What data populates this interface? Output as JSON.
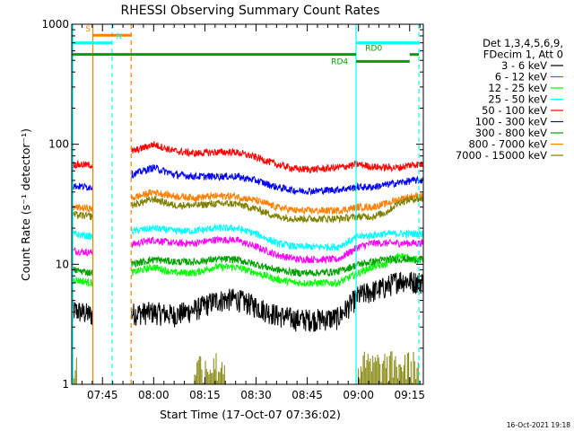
{
  "chart_data": {
    "type": "line",
    "title": "RHESSI Observing Summary Count Rates",
    "xlabel": "Start Time (17-Oct-07 07:36:02)",
    "ylabel": "Count Rate (s⁻¹ detector⁻¹)",
    "yscale": "log",
    "ylim": [
      1,
      1000
    ],
    "xlim_minutes": [
      0,
      103
    ],
    "x_ticks": [
      {
        "label": "07:45",
        "minute": 9
      },
      {
        "label": "08:00",
        "minute": 24
      },
      {
        "label": "08:15",
        "minute": 39
      },
      {
        "label": "08:30",
        "minute": 54
      },
      {
        "label": "08:45",
        "minute": 69
      },
      {
        "label": "09:00",
        "minute": 84
      },
      {
        "label": "09:15",
        "minute": 99
      }
    ],
    "y_ticks": [
      {
        "label": "1",
        "value": 1
      },
      {
        "label": "10",
        "value": 10
      },
      {
        "label": "100",
        "value": 100
      },
      {
        "label": "1000",
        "value": 1000
      }
    ],
    "legend": {
      "position": "right",
      "header": [
        "Det 1,3,4,5,6,9,",
        "FDecim 1, Att 0"
      ]
    },
    "series": [
      {
        "name": "3 - 6 keV",
        "color": "#000000",
        "x": [
          0,
          6,
          24,
          30,
          36,
          42,
          48,
          54,
          60,
          66,
          72,
          78,
          84,
          88,
          92,
          96,
          100
        ],
        "y": [
          4.2,
          3.8,
          4.0,
          3.8,
          4.2,
          5.0,
          5.2,
          4.5,
          3.8,
          3.5,
          3.5,
          3.6,
          5.5,
          6.0,
          6.5,
          7.5,
          7.2
        ]
      },
      {
        "name": "6 - 12 keV",
        "color": "#ff00ff",
        "x": [
          0,
          6,
          24,
          30,
          36,
          42,
          48,
          54,
          60,
          66,
          72,
          78,
          84,
          88,
          92,
          96,
          100
        ],
        "y": [
          13,
          12.5,
          16,
          15,
          15,
          16,
          16,
          14,
          12,
          11,
          11,
          11,
          14,
          15,
          15,
          15,
          15
        ]
      },
      {
        "name": "12 - 25 keV",
        "color": "#00ff00",
        "x": [
          0,
          6,
          24,
          30,
          36,
          42,
          48,
          54,
          60,
          66,
          72,
          78,
          84,
          88,
          92,
          96,
          100
        ],
        "y": [
          7.5,
          7,
          9.5,
          8.5,
          8.5,
          9.5,
          9.5,
          8.5,
          7.5,
          7,
          7,
          7,
          8.5,
          9.5,
          10,
          12,
          11
        ]
      },
      {
        "name": "25 - 50 keV",
        "color": "#00ffff",
        "x": [
          0,
          6,
          24,
          30,
          36,
          42,
          48,
          54,
          60,
          66,
          72,
          78,
          84,
          88,
          92,
          96,
          100
        ],
        "y": [
          18,
          17,
          20,
          19,
          19,
          20,
          20,
          18,
          15,
          14,
          14,
          14,
          17,
          17.5,
          18,
          18,
          18
        ]
      },
      {
        "name": "50 - 100 keV",
        "color": "#ff0000",
        "x": [
          0,
          6,
          24,
          30,
          36,
          42,
          48,
          54,
          60,
          66,
          72,
          78,
          84,
          88,
          92,
          96,
          100
        ],
        "y": [
          68,
          67,
          100,
          88,
          84,
          86,
          86,
          78,
          68,
          62,
          62,
          64,
          68,
          65,
          64,
          64,
          68
        ]
      },
      {
        "name": "100 - 300 keV",
        "color": "#0000ff",
        "x": [
          0,
          6,
          24,
          30,
          36,
          42,
          48,
          54,
          60,
          66,
          72,
          78,
          84,
          88,
          92,
          96,
          100
        ],
        "y": [
          45,
          44,
          64,
          56,
          54,
          54,
          54,
          50,
          44,
          41,
          41,
          42,
          44,
          44,
          46,
          48,
          50
        ]
      },
      {
        "name": "300 - 800 keV",
        "color": "#00a000",
        "x": [
          0,
          6,
          24,
          30,
          36,
          42,
          48,
          54,
          60,
          66,
          72,
          78,
          84,
          88,
          92,
          96,
          100
        ],
        "y": [
          9,
          8.5,
          11,
          10.5,
          10.5,
          11,
          11,
          10,
          9,
          8.5,
          8.5,
          8.7,
          10,
          10.5,
          11,
          11,
          11
        ]
      },
      {
        "name": "800 - 7000 keV",
        "color": "#ff8000",
        "x": [
          0,
          6,
          24,
          30,
          36,
          42,
          48,
          54,
          60,
          66,
          72,
          78,
          84,
          88,
          92,
          96,
          100
        ],
        "y": [
          30,
          29,
          40,
          37,
          36,
          37,
          37,
          34,
          30,
          28,
          28,
          28,
          30,
          30,
          32,
          35,
          37
        ]
      },
      {
        "name": "7000 - 15000 keV",
        "color": "#808000",
        "x": [
          0,
          6,
          24,
          30,
          36,
          42,
          48,
          54,
          60,
          66,
          72,
          78,
          84,
          88,
          92,
          96,
          100
        ],
        "y": [
          26,
          25,
          35,
          31,
          31,
          32,
          32,
          29,
          25,
          24,
          24,
          24,
          25,
          25,
          27,
          33,
          35
        ]
      }
    ],
    "vertical_markers": [
      {
        "minute": 0.3,
        "color": "#00ffff",
        "style": "solid"
      },
      {
        "minute": 6.2,
        "color": "#ff8000",
        "style": "solid"
      },
      {
        "minute": 11.8,
        "color": "#00ffff",
        "style": "dashed"
      },
      {
        "minute": 17.4,
        "color": "#ff8000",
        "style": "dashed"
      },
      {
        "minute": 83.3,
        "color": "#00ffff",
        "style": "solid"
      },
      {
        "minute": 101.7,
        "color": "#00ffff",
        "style": "dashed"
      }
    ],
    "flag_bars": [
      {
        "label": "S",
        "color": "#ff8000",
        "y": 810,
        "x": [
          6.2,
          17.4
        ],
        "label_minute": 4.0
      },
      {
        "label": "N",
        "color": "#00ffff",
        "y": 700,
        "x": [
          0,
          11.8
        ],
        "label_minute": 13.0
      },
      {
        "label": "",
        "color": "#00ffff",
        "y": 700,
        "x": [
          83.3,
          101.7
        ]
      },
      {
        "label": "RD0",
        "color": "#00a000",
        "y": 560,
        "x": [
          99.0,
          101.7
        ],
        "label_minute": 86.0
      },
      {
        "label": "RD4",
        "color": "#00a000",
        "y": 560,
        "x": [
          0,
          83.3
        ],
        "label_minute": 76.0
      },
      {
        "label": "",
        "color": "#00a000",
        "y": 490,
        "x": [
          83.3,
          99.0
        ]
      }
    ],
    "gaps_minutes": [
      [
        6.2,
        17.4
      ]
    ],
    "decim_spikes": [
      {
        "color": "#808000",
        "x": [
          0,
          1.5
        ],
        "ymax": 1.8
      },
      {
        "color": "#808000",
        "x": [
          36,
          45
        ],
        "ymax": 1.9
      },
      {
        "color": "#808000",
        "x": [
          84,
          102
        ],
        "ymax": 1.9
      }
    ],
    "footer_timestamp": "16-Oct-2021 19:18"
  }
}
